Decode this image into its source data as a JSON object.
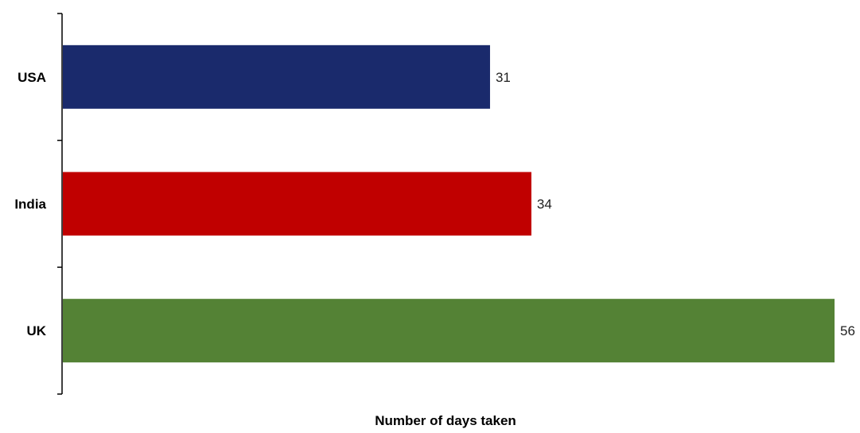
{
  "chart_data": {
    "type": "bar",
    "orientation": "horizontal",
    "categories": [
      "USA",
      "India",
      "UK"
    ],
    "values": [
      31,
      34,
      56
    ],
    "colors": [
      "#1a2a6c",
      "#c00000",
      "#548235"
    ],
    "title": "",
    "xlabel": "Number of days taken",
    "ylabel": "",
    "xlim": [
      0,
      56
    ],
    "grid": false,
    "legend": "none",
    "data_labels": true
  }
}
